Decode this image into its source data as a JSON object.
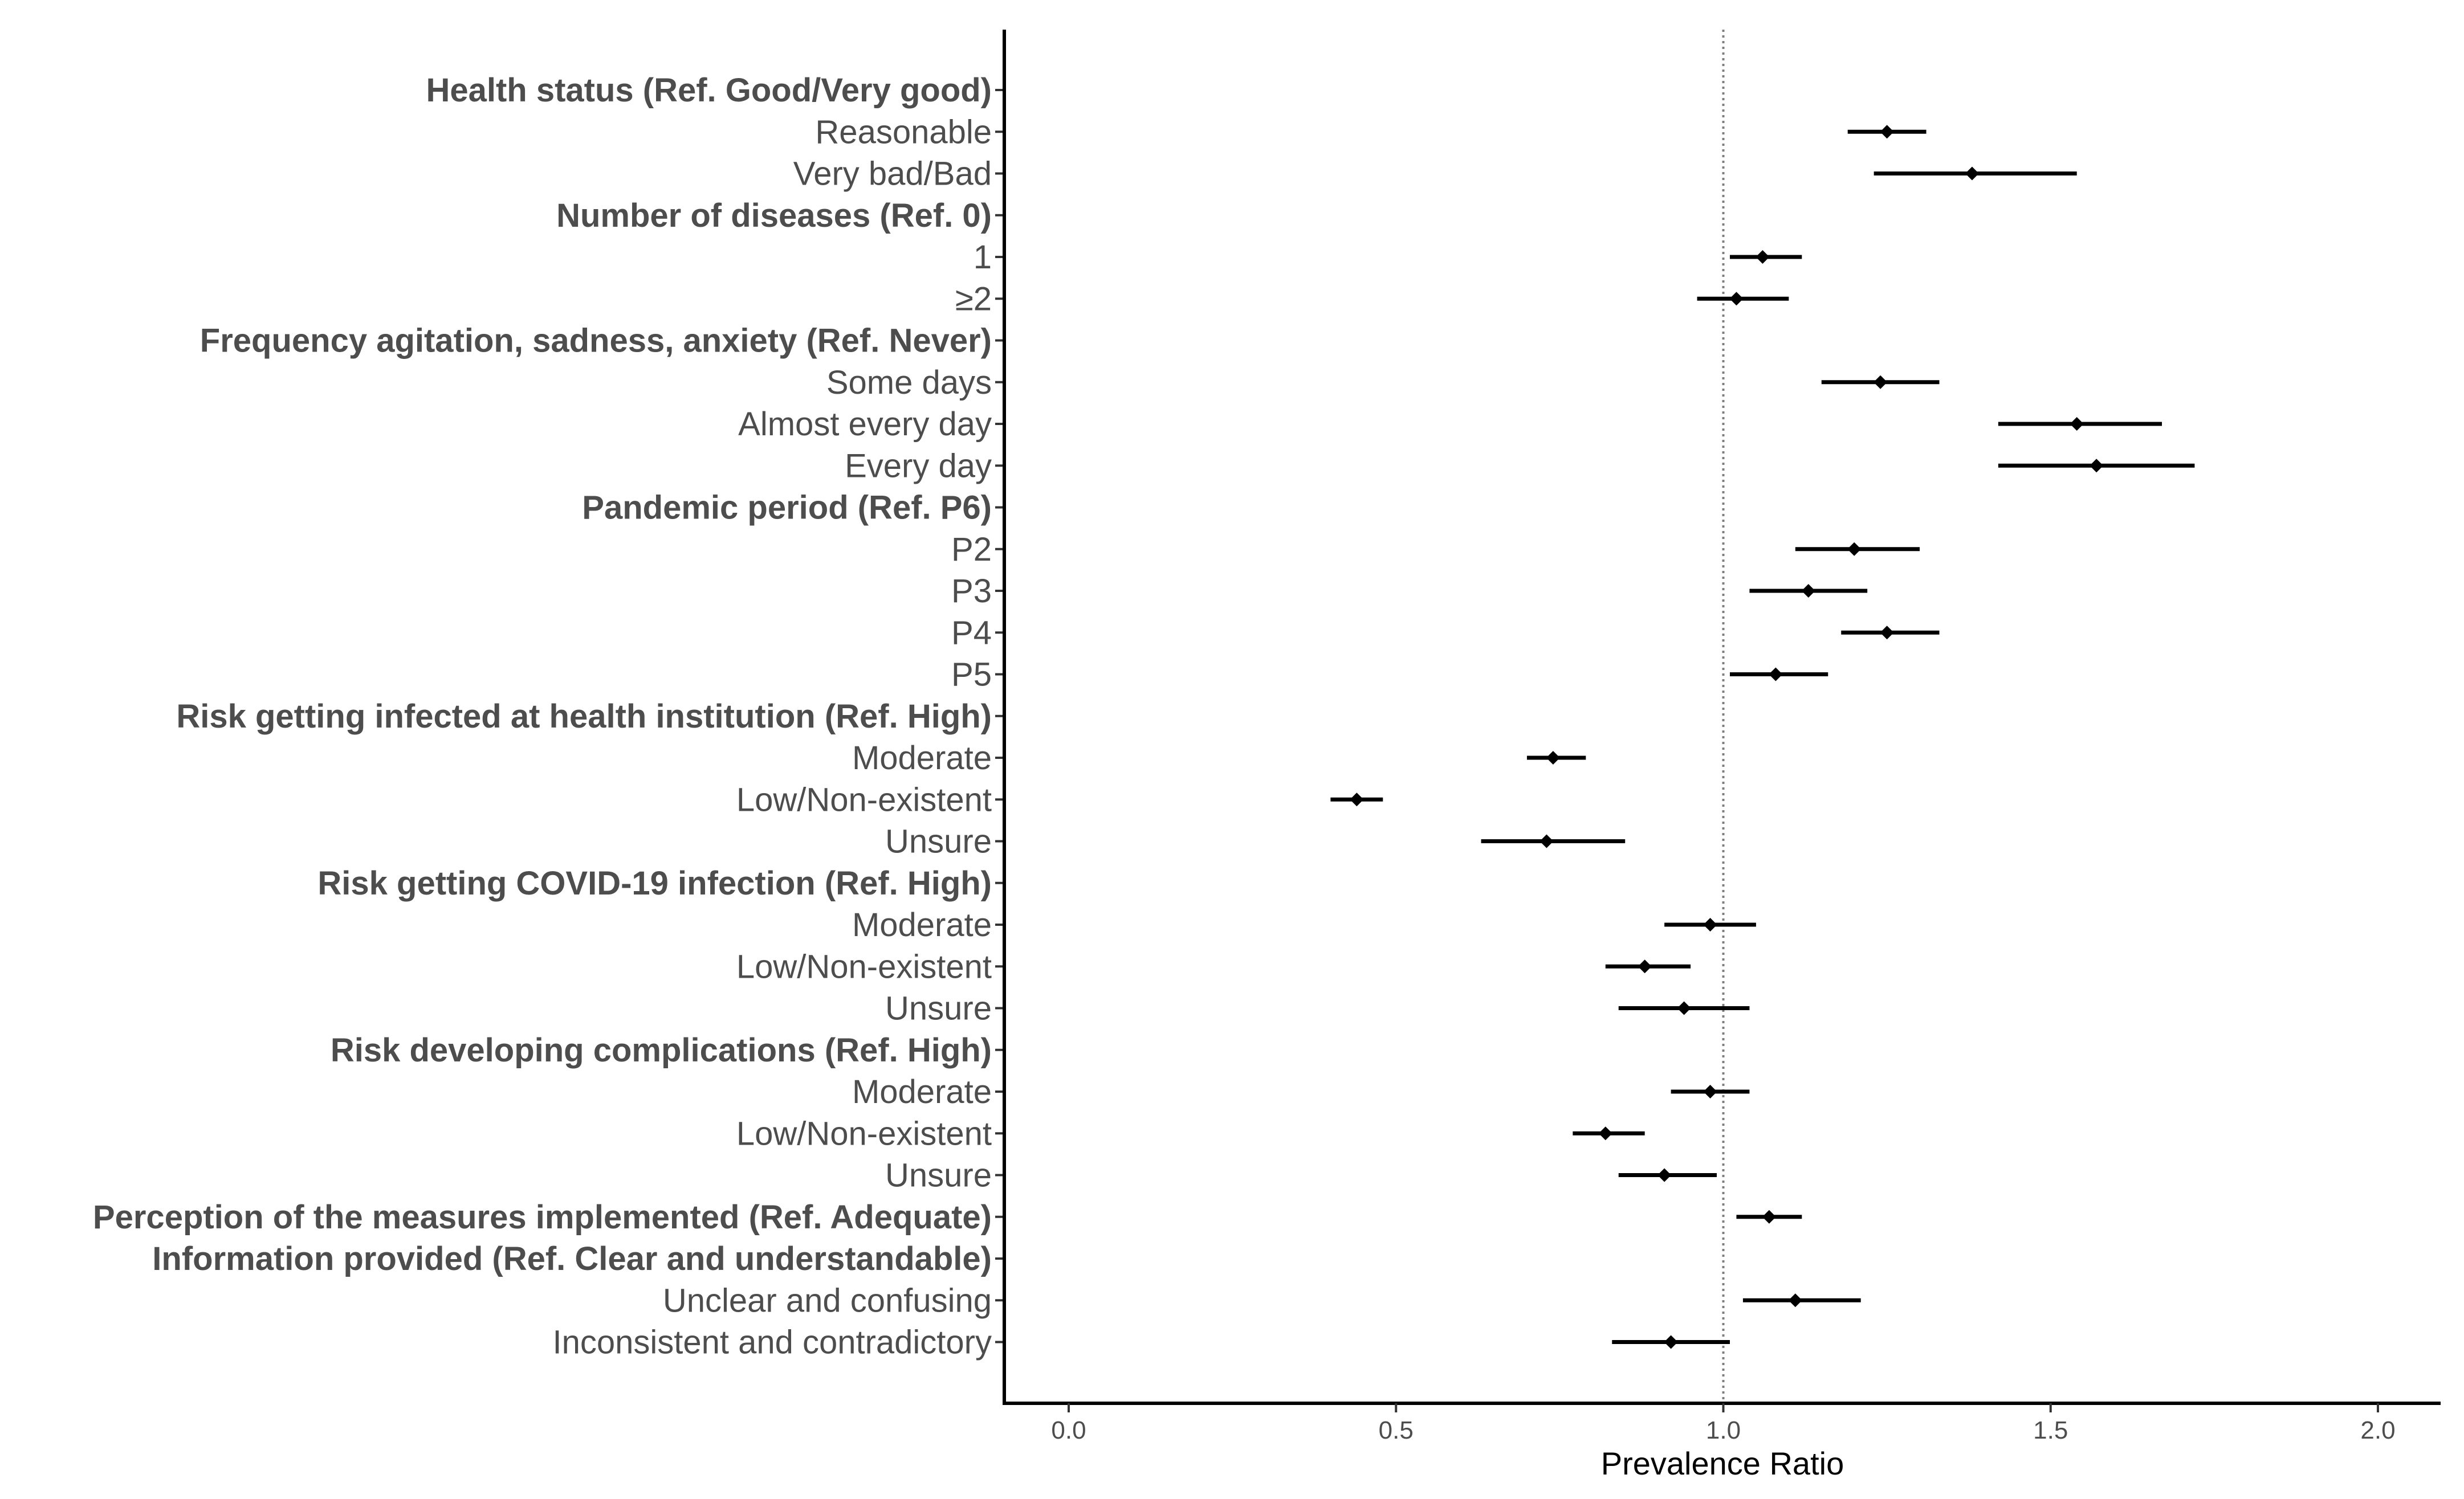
{
  "chart_data": {
    "type": "forest",
    "xlabel": "Prevalence Ratio",
    "xlim": [
      -0.1,
      2.1
    ],
    "xticks": [
      0.0,
      0.5,
      1.0,
      1.5,
      2.0
    ],
    "xtick_labels": [
      "0.0",
      "0.5",
      "1.0",
      "1.5",
      "2.0"
    ],
    "reference_line": 1.0,
    "grid": false,
    "rows": [
      {
        "label": "Health status (Ref. Good/Very good)",
        "header": true
      },
      {
        "label": "Reasonable",
        "header": false,
        "pr": 1.25,
        "lo": 1.19,
        "hi": 1.31
      },
      {
        "label": "Very bad/Bad",
        "header": false,
        "pr": 1.38,
        "lo": 1.23,
        "hi": 1.54
      },
      {
        "label": "Number of diseases (Ref. 0)",
        "header": true
      },
      {
        "label": "1",
        "header": false,
        "pr": 1.06,
        "lo": 1.01,
        "hi": 1.12
      },
      {
        "label": "≥2",
        "header": false,
        "pr": 1.02,
        "lo": 0.96,
        "hi": 1.1
      },
      {
        "label": "Frequency agitation, sadness, anxiety (Ref. Never)",
        "header": true
      },
      {
        "label": "Some days",
        "header": false,
        "pr": 1.24,
        "lo": 1.15,
        "hi": 1.33
      },
      {
        "label": "Almost every day",
        "header": false,
        "pr": 1.54,
        "lo": 1.42,
        "hi": 1.67
      },
      {
        "label": "Every day",
        "header": false,
        "pr": 1.57,
        "lo": 1.42,
        "hi": 1.72
      },
      {
        "label": "Pandemic period (Ref. P6)",
        "header": true
      },
      {
        "label": "P2",
        "header": false,
        "pr": 1.2,
        "lo": 1.11,
        "hi": 1.3
      },
      {
        "label": "P3",
        "header": false,
        "pr": 1.13,
        "lo": 1.04,
        "hi": 1.22
      },
      {
        "label": "P4",
        "header": false,
        "pr": 1.25,
        "lo": 1.18,
        "hi": 1.33
      },
      {
        "label": "P5",
        "header": false,
        "pr": 1.08,
        "lo": 1.01,
        "hi": 1.16
      },
      {
        "label": "Risk getting infected at health institution (Ref. High)",
        "header": true
      },
      {
        "label": "Moderate",
        "header": false,
        "pr": 0.74,
        "lo": 0.7,
        "hi": 0.79
      },
      {
        "label": "Low/Non-existent",
        "header": false,
        "pr": 0.44,
        "lo": 0.4,
        "hi": 0.48
      },
      {
        "label": "Unsure",
        "header": false,
        "pr": 0.73,
        "lo": 0.63,
        "hi": 0.85
      },
      {
        "label": "Risk getting COVID-19  infection (Ref. High)",
        "header": true
      },
      {
        "label": "Moderate",
        "header": false,
        "pr": 0.98,
        "lo": 0.91,
        "hi": 1.05
      },
      {
        "label": "Low/Non-existent",
        "header": false,
        "pr": 0.88,
        "lo": 0.82,
        "hi": 0.95
      },
      {
        "label": "Unsure",
        "header": false,
        "pr": 0.94,
        "lo": 0.84,
        "hi": 1.04
      },
      {
        "label": "Risk developing complications (Ref. High)",
        "header": true
      },
      {
        "label": "Moderate",
        "header": false,
        "pr": 0.98,
        "lo": 0.92,
        "hi": 1.04
      },
      {
        "label": "Low/Non-existent",
        "header": false,
        "pr": 0.82,
        "lo": 0.77,
        "hi": 0.88
      },
      {
        "label": "Unsure",
        "header": false,
        "pr": 0.91,
        "lo": 0.84,
        "hi": 0.99
      },
      {
        "label": "Perception of the measures implemented (Ref. Adequate)",
        "header": true,
        "pr": 1.07,
        "lo": 1.02,
        "hi": 1.12
      },
      {
        "label": "Information provided (Ref. Clear and understandable)",
        "header": true
      },
      {
        "label": "Unclear and confusing",
        "header": false,
        "pr": 1.11,
        "lo": 1.03,
        "hi": 1.21
      },
      {
        "label": "Inconsistent and contradictory",
        "header": false,
        "pr": 0.92,
        "lo": 0.83,
        "hi": 1.01
      }
    ]
  }
}
